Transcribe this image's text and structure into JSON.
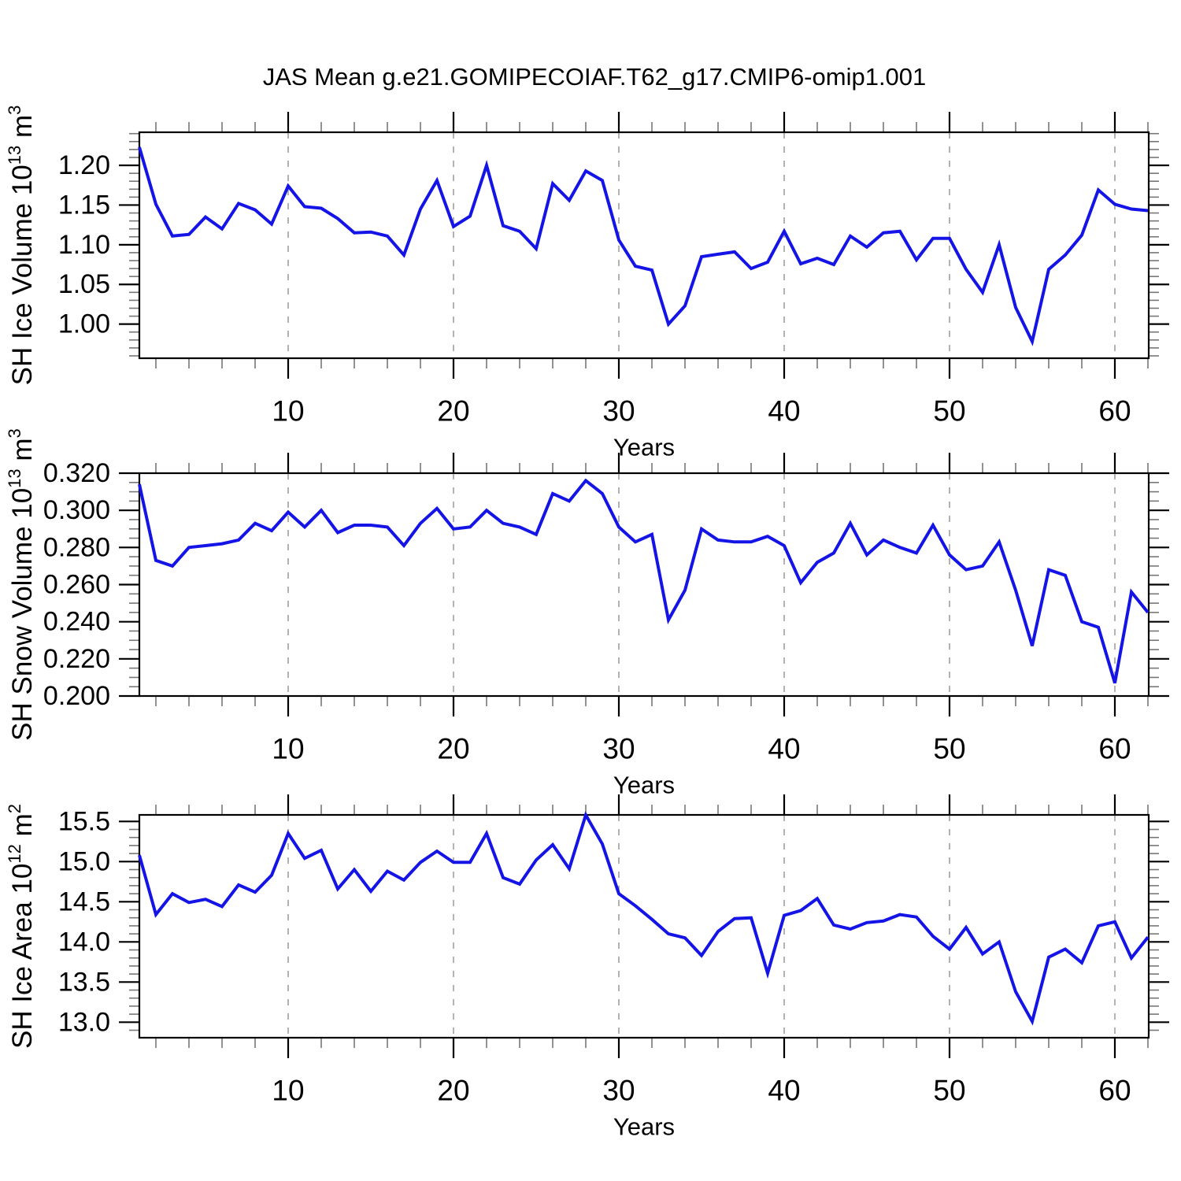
{
  "title": "JAS Mean g.e21.GOMIPECOIAF.T62_g17.CMIP6-omip1.001",
  "style": {
    "line_color": "#1414E6",
    "axis_color": "#000000",
    "grid_color": "#999999",
    "minor_tick_color": "#777777",
    "background": "#ffffff"
  },
  "x_axis": {
    "label": "Years",
    "lim": [
      1,
      62.048
    ],
    "ticks": [
      10,
      20,
      30,
      40,
      50,
      60
    ],
    "tick_labels": [
      "10",
      "20",
      "30",
      "40",
      "50",
      "60"
    ],
    "minor_step": 2,
    "years_start": 1,
    "years_end": 62
  },
  "chart_data": [
    {
      "type": "line",
      "id": "sh-ice-volume",
      "ylabel": "SH Ice Volume 10^13 m^3",
      "ylabel_parts": [
        [
          "SH Ice Volume 10",
          false
        ],
        [
          "13",
          true
        ],
        [
          " m",
          false
        ],
        [
          "3",
          true
        ]
      ],
      "xlabel": "Years",
      "ylim": [
        0.957,
        1.2417
      ],
      "yticks": [
        1.0,
        1.05,
        1.1,
        1.15,
        1.2
      ],
      "ytick_labels": [
        "1.00",
        "1.05",
        "1.10",
        "1.15",
        "1.20"
      ],
      "yminor_step": 0.01,
      "grid": "vertical-dashed",
      "legend": "none",
      "values": [
        1.223,
        1.151,
        1.111,
        1.113,
        1.135,
        1.12,
        1.152,
        1.144,
        1.126,
        1.174,
        1.148,
        1.146,
        1.133,
        1.115,
        1.116,
        1.111,
        1.087,
        1.145,
        1.181,
        1.123,
        1.136,
        1.2,
        1.124,
        1.117,
        1.095,
        1.177,
        1.156,
        1.193,
        1.181,
        1.106,
        1.073,
        1.068,
        1.0,
        1.023,
        1.085,
        1.088,
        1.091,
        1.07,
        1.078,
        1.117,
        1.076,
        1.083,
        1.075,
        1.111,
        1.097,
        1.115,
        1.117,
        1.081,
        1.108,
        1.108,
        1.069,
        1.04,
        1.1,
        1.021,
        0.978,
        1.069,
        1.087,
        1.112,
        1.169,
        1.151,
        1.145,
        1.143
      ]
    },
    {
      "type": "line",
      "id": "sh-snow-volume",
      "ylabel": "SH Snow Volume 10^13 m^3",
      "ylabel_parts": [
        [
          "SH Snow Volume 10",
          false
        ],
        [
          "13",
          true
        ],
        [
          " m",
          false
        ],
        [
          "3",
          true
        ]
      ],
      "xlabel": "Years",
      "ylim": [
        0.2,
        0.32
      ],
      "yticks": [
        0.2,
        0.22,
        0.24,
        0.26,
        0.28,
        0.3,
        0.32
      ],
      "ytick_labels": [
        "0.200",
        "0.220",
        "0.240",
        "0.260",
        "0.280",
        "0.300",
        "0.320"
      ],
      "yminor_step": 0.005,
      "grid": "vertical-dashed",
      "legend": "none",
      "values": [
        0.314,
        0.273,
        0.27,
        0.28,
        0.281,
        0.282,
        0.284,
        0.293,
        0.289,
        0.299,
        0.291,
        0.3,
        0.288,
        0.292,
        0.292,
        0.291,
        0.281,
        0.293,
        0.301,
        0.29,
        0.291,
        0.3,
        0.293,
        0.291,
        0.287,
        0.309,
        0.305,
        0.316,
        0.309,
        0.291,
        0.283,
        0.287,
        0.241,
        0.257,
        0.29,
        0.284,
        0.283,
        0.283,
        0.286,
        0.281,
        0.261,
        0.272,
        0.277,
        0.293,
        0.276,
        0.284,
        0.28,
        0.277,
        0.292,
        0.276,
        0.268,
        0.27,
        0.283,
        0.257,
        0.227,
        0.268,
        0.265,
        0.24,
        0.237,
        0.207,
        0.256,
        0.245
      ]
    },
    {
      "type": "line",
      "id": "sh-ice-area",
      "ylabel": "SH Ice Area 10^12 m^2",
      "ylabel_parts": [
        [
          "SH Ice Area 10",
          false
        ],
        [
          "12",
          true
        ],
        [
          " m",
          false
        ],
        [
          "2",
          true
        ]
      ],
      "xlabel": "Years",
      "ylim": [
        12.807,
        15.5814
      ],
      "yticks": [
        13.0,
        13.5,
        14.0,
        14.5,
        15.0,
        15.5
      ],
      "ytick_labels": [
        "13.0",
        "13.5",
        "14.0",
        "14.5",
        "15.0",
        "15.5"
      ],
      "yminor_step": 0.1,
      "grid": "vertical-dashed",
      "legend": "none",
      "values": [
        15.08,
        14.34,
        14.6,
        14.49,
        14.53,
        14.44,
        14.71,
        14.62,
        14.83,
        15.35,
        15.04,
        15.14,
        14.66,
        14.9,
        14.63,
        14.88,
        14.77,
        14.99,
        15.13,
        14.99,
        14.99,
        15.35,
        14.8,
        14.72,
        15.02,
        15.21,
        14.91,
        15.58,
        15.22,
        14.6,
        14.45,
        14.28,
        14.1,
        14.05,
        13.83,
        14.13,
        14.29,
        14.3,
        13.61,
        14.33,
        14.39,
        14.54,
        14.21,
        14.16,
        14.24,
        14.26,
        14.34,
        14.31,
        14.07,
        13.91,
        14.18,
        13.85,
        14.0,
        13.38,
        13.01,
        13.81,
        13.91,
        13.74,
        14.2,
        14.25,
        13.8,
        14.06
      ]
    }
  ]
}
